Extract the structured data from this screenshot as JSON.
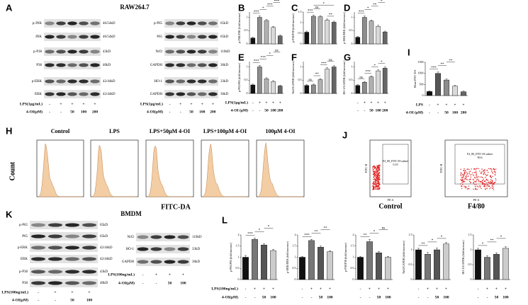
{
  "A": {
    "label": "A",
    "cell": "RAW264.7",
    "left_blot": [
      {
        "name": "p-JNK",
        "size": "46/54kD"
      },
      {
        "name": "JNK",
        "size": "46/54kD"
      },
      {
        "name": "p-P38",
        "size": "43kD"
      },
      {
        "name": "P38",
        "size": "40kD"
      },
      {
        "name": "p-ERK",
        "size": "42/44kD"
      },
      {
        "name": "ERK",
        "size": "42/44kD"
      }
    ],
    "right_blot": [
      {
        "name": "p-P65",
        "size": "65kD"
      },
      {
        "name": "P65",
        "size": "65kD"
      },
      {
        "name": "Nrf2",
        "size": "110kD"
      },
      {
        "name": "GAPDH",
        "size": "36kD"
      },
      {
        "name": "HO-1",
        "size": "33kD"
      },
      {
        "name": "GAPDH",
        "size": "36kD"
      }
    ],
    "treatment": {
      "lps_label": "LPS(1μg/mL)",
      "lps": [
        "-",
        "+",
        "+",
        "+",
        "+"
      ],
      "oi_label": "4-OI(μM)",
      "oi": [
        "-",
        "-",
        "50",
        "100",
        "200"
      ]
    }
  },
  "BG_treatment": {
    "lps_label": "LPS(1μg/mL)",
    "lps": [
      "-",
      "+",
      "+",
      "+",
      "+"
    ],
    "oi_label": "4-OI (μM)",
    "oi": [
      "-",
      "-",
      "50",
      "100",
      "200"
    ]
  },
  "I_treatment": {
    "lps_label": "LPS",
    "lps": [
      "-",
      "+",
      "+",
      "+",
      "+"
    ],
    "oi_label": "4-OI (μM)",
    "oi": [
      "-",
      "-",
      "50",
      "100",
      "200"
    ]
  },
  "H": {
    "label": "H",
    "ylabel": "Count",
    "xlabel": "FITC-DA",
    "titles": [
      "Control",
      "LPS",
      "LPS+50μM 4-OI",
      "LPS+100μM 4-OI",
      "100μM 4-OI"
    ]
  },
  "J": {
    "label": "J",
    "ylabel": "FITC-H",
    "xlabel": "PE-A",
    "plots": [
      {
        "title": "Control",
        "gate": "F4_80_FITC-H subset",
        "gate_value": "0.19"
      },
      {
        "title": "F4/80",
        "gate": "F4_80_FITC-H subset",
        "gate_value": "90.6"
      }
    ]
  },
  "K": {
    "label": "K",
    "cell": "BMDM",
    "left_blot": [
      {
        "name": "p-P65",
        "size": "65kD"
      },
      {
        "name": "P65",
        "size": "65kD"
      },
      {
        "name": "p-ERK",
        "size": "42/44kD"
      },
      {
        "name": "ERK",
        "size": "42/44kD"
      },
      {
        "name": "p-P38",
        "size": "43kD"
      },
      {
        "name": "P38",
        "size": "40kD"
      }
    ],
    "right_blot": [
      {
        "name": "Nrf2",
        "size": "110kD"
      },
      {
        "name": "HO-1",
        "size": "33kD"
      },
      {
        "name": "GAPDH",
        "size": "36kD"
      }
    ],
    "treatment": {
      "lps_label": "LPS(100ng/mL)",
      "lps": [
        "-",
        "+",
        "+",
        "+"
      ],
      "oi_label": "4-OI(μM)",
      "oi": [
        "-",
        "-",
        "50",
        "100"
      ]
    }
  },
  "L": {
    "label": "L",
    "treatment": {
      "lps_label": "LPS(100ng/mL)",
      "lps": [
        "-",
        "+",
        "+",
        "+"
      ],
      "oi_label": "4-OI(μM)",
      "oi": [
        "-",
        "-",
        "50",
        "100"
      ]
    }
  },
  "chart_data": [
    {
      "type": "bar",
      "label": "B",
      "ylabel": "p-JNK/JNK (fold increase)",
      "values": [
        0.22,
        1.0,
        0.88,
        0.62,
        0.3
      ],
      "errors": [
        0.03,
        0.05,
        0.04,
        0.04,
        0.03
      ],
      "ylim": [
        0,
        1.2
      ],
      "yticks": [
        0,
        0.5,
        1
      ],
      "colors": [
        "#111111",
        "#8c8c8c",
        "#b0b0b0",
        "#d9d9d9",
        "#666666"
      ],
      "significance": [
        {
          "text": "***",
          "pair": [
            0,
            1
          ]
        },
        {
          "text": "*",
          "pair": [
            1,
            2
          ]
        },
        {
          "text": "***",
          "pair": [
            2,
            3
          ]
        },
        {
          "text": "***",
          "pair": [
            3,
            4
          ]
        }
      ]
    },
    {
      "type": "bar",
      "label": "C",
      "ylabel": "p-P38/P38 (fold increase)",
      "values": [
        0.55,
        1.3,
        1.28,
        1.12,
        1.02
      ],
      "errors": [
        0.05,
        0.06,
        0.05,
        0.05,
        0.05
      ],
      "ylim": [
        0,
        1.5
      ],
      "yticks": [
        0,
        0.5,
        1,
        1.5
      ],
      "colors": [
        "#111111",
        "#8c8c8c",
        "#b0b0b0",
        "#d9d9d9",
        "#666666"
      ],
      "significance": [
        {
          "text": "***",
          "pair": [
            0,
            1
          ]
        },
        {
          "text": "ns",
          "pair": [
            1,
            2
          ]
        },
        {
          "text": "**",
          "pair": [
            3,
            4
          ]
        },
        {
          "text": "*",
          "pair": [
            1,
            4
          ]
        }
      ]
    },
    {
      "type": "bar",
      "label": "D",
      "ylabel": "p-ERK/ERK (fold increase)",
      "values": [
        0.25,
        1.0,
        0.86,
        0.66,
        0.45
      ],
      "errors": [
        0.03,
        0.05,
        0.04,
        0.04,
        0.03
      ],
      "ylim": [
        0,
        1.2
      ],
      "yticks": [
        0,
        0.5,
        1
      ],
      "colors": [
        "#111111",
        "#8c8c8c",
        "#b0b0b0",
        "#d9d9d9",
        "#666666"
      ],
      "significance": [
        {
          "text": "***",
          "pair": [
            0,
            1
          ]
        },
        {
          "text": "*",
          "pair": [
            1,
            2
          ]
        },
        {
          "text": "**",
          "pair": [
            2,
            3
          ]
        },
        {
          "text": "*",
          "pair": [
            3,
            4
          ]
        }
      ]
    },
    {
      "type": "bar",
      "label": "E",
      "ylabel": "p-P65/P65 (fold increase)",
      "values": [
        0.32,
        1.0,
        0.55,
        0.45,
        0.28
      ],
      "errors": [
        0.03,
        0.06,
        0.04,
        0.03,
        0.03
      ],
      "ylim": [
        0,
        1.2
      ],
      "yticks": [
        0,
        0.5,
        1
      ],
      "colors": [
        "#111111",
        "#8c8c8c",
        "#b0b0b0",
        "#d9d9d9",
        "#666666"
      ],
      "significance": [
        {
          "text": "***",
          "pair": [
            0,
            1
          ]
        },
        {
          "text": "***",
          "pair": [
            1,
            2
          ]
        },
        {
          "text": "*",
          "pair": [
            2,
            3
          ]
        },
        {
          "text": "ns",
          "pair": [
            3,
            4
          ]
        }
      ]
    },
    {
      "type": "bar",
      "label": "F",
      "ylabel": "Nrf2/GAPDH (fold increase)",
      "values": [
        0.3,
        0.32,
        0.52,
        0.92,
        1.0
      ],
      "errors": [
        0.03,
        0.03,
        0.04,
        0.05,
        0.05
      ],
      "ylim": [
        0,
        1.2
      ],
      "yticks": [
        0,
        0.5,
        1
      ],
      "colors": [
        "#111111",
        "#8c8c8c",
        "#b0b0b0",
        "#d9d9d9",
        "#666666"
      ],
      "significance": [
        {
          "text": "ns",
          "pair": [
            0,
            1
          ]
        },
        {
          "text": "**",
          "pair": [
            1,
            2
          ]
        },
        {
          "text": "***",
          "pair": [
            2,
            3
          ]
        },
        {
          "text": "ns",
          "pair": [
            3,
            4
          ]
        }
      ]
    },
    {
      "type": "bar",
      "label": "G",
      "ylabel": "HO-1/GAPDH (fold increase)",
      "values": [
        0.3,
        0.42,
        0.62,
        0.85,
        0.95
      ],
      "errors": [
        0.03,
        0.03,
        0.04,
        0.04,
        0.05
      ],
      "ylim": [
        0,
        1.2
      ],
      "yticks": [
        0,
        0.5,
        1
      ],
      "colors": [
        "#111111",
        "#8c8c8c",
        "#b0b0b0",
        "#d9d9d9",
        "#666666"
      ],
      "significance": [
        {
          "text": "ns",
          "pair": [
            0,
            1
          ]
        },
        {
          "text": "***",
          "pair": [
            1,
            2
          ]
        },
        {
          "text": "*",
          "pair": [
            2,
            3
          ]
        },
        {
          "text": "*",
          "pair": [
            3,
            4
          ]
        }
      ]
    },
    {
      "type": "bar",
      "label": "I",
      "ylabel": "Mean FITC-DA",
      "values": [
        180,
        1000,
        700,
        420,
        170
      ],
      "errors": [
        30,
        60,
        50,
        40,
        30
      ],
      "ylim": [
        0,
        1500
      ],
      "yticks": [
        0,
        500,
        1000,
        1500
      ],
      "colors": [
        "#111111",
        "#555555",
        "#8c8c8c",
        "#d9d9d9",
        "#666666"
      ],
      "significance": [
        {
          "text": "***",
          "pair": [
            0,
            1
          ]
        },
        {
          "text": "**",
          "pair": [
            1,
            2
          ]
        },
        {
          "text": "**",
          "pair": [
            2,
            3
          ]
        }
      ]
    },
    {
      "type": "bar",
      "ylabel": "p-P65/P65 (fold increase)",
      "values": [
        1.0,
        1.8,
        1.55,
        1.3
      ],
      "errors": [
        0.08,
        0.06,
        0.06,
        0.05
      ],
      "ylim": [
        0,
        2
      ],
      "yticks": [
        0,
        0.5,
        1,
        1.5,
        2
      ],
      "colors": [
        "#111111",
        "#777777",
        "#555555",
        "#cccccc"
      ],
      "significance": [
        {
          "text": "***",
          "pair": [
            0,
            1
          ]
        },
        {
          "text": "*",
          "pair": [
            1,
            2
          ]
        },
        {
          "text": "*",
          "pair": [
            2,
            3
          ]
        }
      ]
    },
    {
      "type": "bar",
      "ylabel": "p-ERK/ERK (fold increase)",
      "values": [
        1.0,
        1.75,
        1.45,
        1.25
      ],
      "errors": [
        0.03,
        0.05,
        0.05,
        0.04
      ],
      "ylim": [
        0,
        2
      ],
      "yticks": [
        0,
        0.5,
        1,
        1.5,
        2
      ],
      "colors": [
        "#111111",
        "#777777",
        "#555555",
        "#cccccc"
      ],
      "significance": [
        {
          "text": "***",
          "pair": [
            0,
            1
          ]
        },
        {
          "text": "**",
          "pair": [
            1,
            2
          ]
        },
        {
          "text": "**",
          "pair": [
            2,
            3
          ]
        }
      ]
    },
    {
      "type": "bar",
      "ylabel": "p-P38/P38 (fold increase)",
      "values": [
        1.0,
        1.7,
        1.2,
        1.0
      ],
      "errors": [
        0.03,
        0.1,
        0.06,
        0.04
      ],
      "ylim": [
        0,
        2
      ],
      "yticks": [
        0,
        0.5,
        1,
        1.5,
        2
      ],
      "colors": [
        "#111111",
        "#777777",
        "#555555",
        "#cccccc"
      ],
      "significance": [
        {
          "text": "**",
          "pair": [
            0,
            1
          ]
        },
        {
          "text": "*",
          "pair": [
            1,
            2
          ]
        },
        {
          "text": "ns",
          "pair": [
            2,
            3
          ]
        }
      ]
    },
    {
      "type": "bar",
      "ylabel": "Nrf2/GAPDH (fold increase)",
      "values": [
        1.0,
        0.85,
        1.0,
        1.2
      ],
      "errors": [
        0.05,
        0.06,
        0.06,
        0.05
      ],
      "ylim": [
        0,
        1.5
      ],
      "yticks": [
        0,
        0.5,
        1,
        1.5
      ],
      "colors": [
        "#111111",
        "#777777",
        "#555555",
        "#cccccc"
      ],
      "significance": [
        {
          "text": "**",
          "pair": [
            0,
            1
          ]
        },
        {
          "text": "*",
          "pair": [
            1,
            2
          ]
        },
        {
          "text": "*",
          "pair": [
            2,
            3
          ]
        }
      ]
    },
    {
      "type": "bar",
      "ylabel": "HO-1/GAPDH (fold increase)",
      "values": [
        1.0,
        0.75,
        0.85,
        1.05
      ],
      "errors": [
        0.05,
        0.05,
        0.05,
        0.05
      ],
      "ylim": [
        0,
        1.5
      ],
      "yticks": [
        0,
        0.5,
        1,
        1.5
      ],
      "colors": [
        "#111111",
        "#777777",
        "#555555",
        "#cccccc"
      ],
      "significance": [
        {
          "text": "*",
          "pair": [
            0,
            1
          ]
        },
        {
          "text": "**",
          "pair": [
            1,
            2
          ]
        },
        {
          "text": "*",
          "pair": [
            2,
            3
          ]
        }
      ]
    }
  ]
}
